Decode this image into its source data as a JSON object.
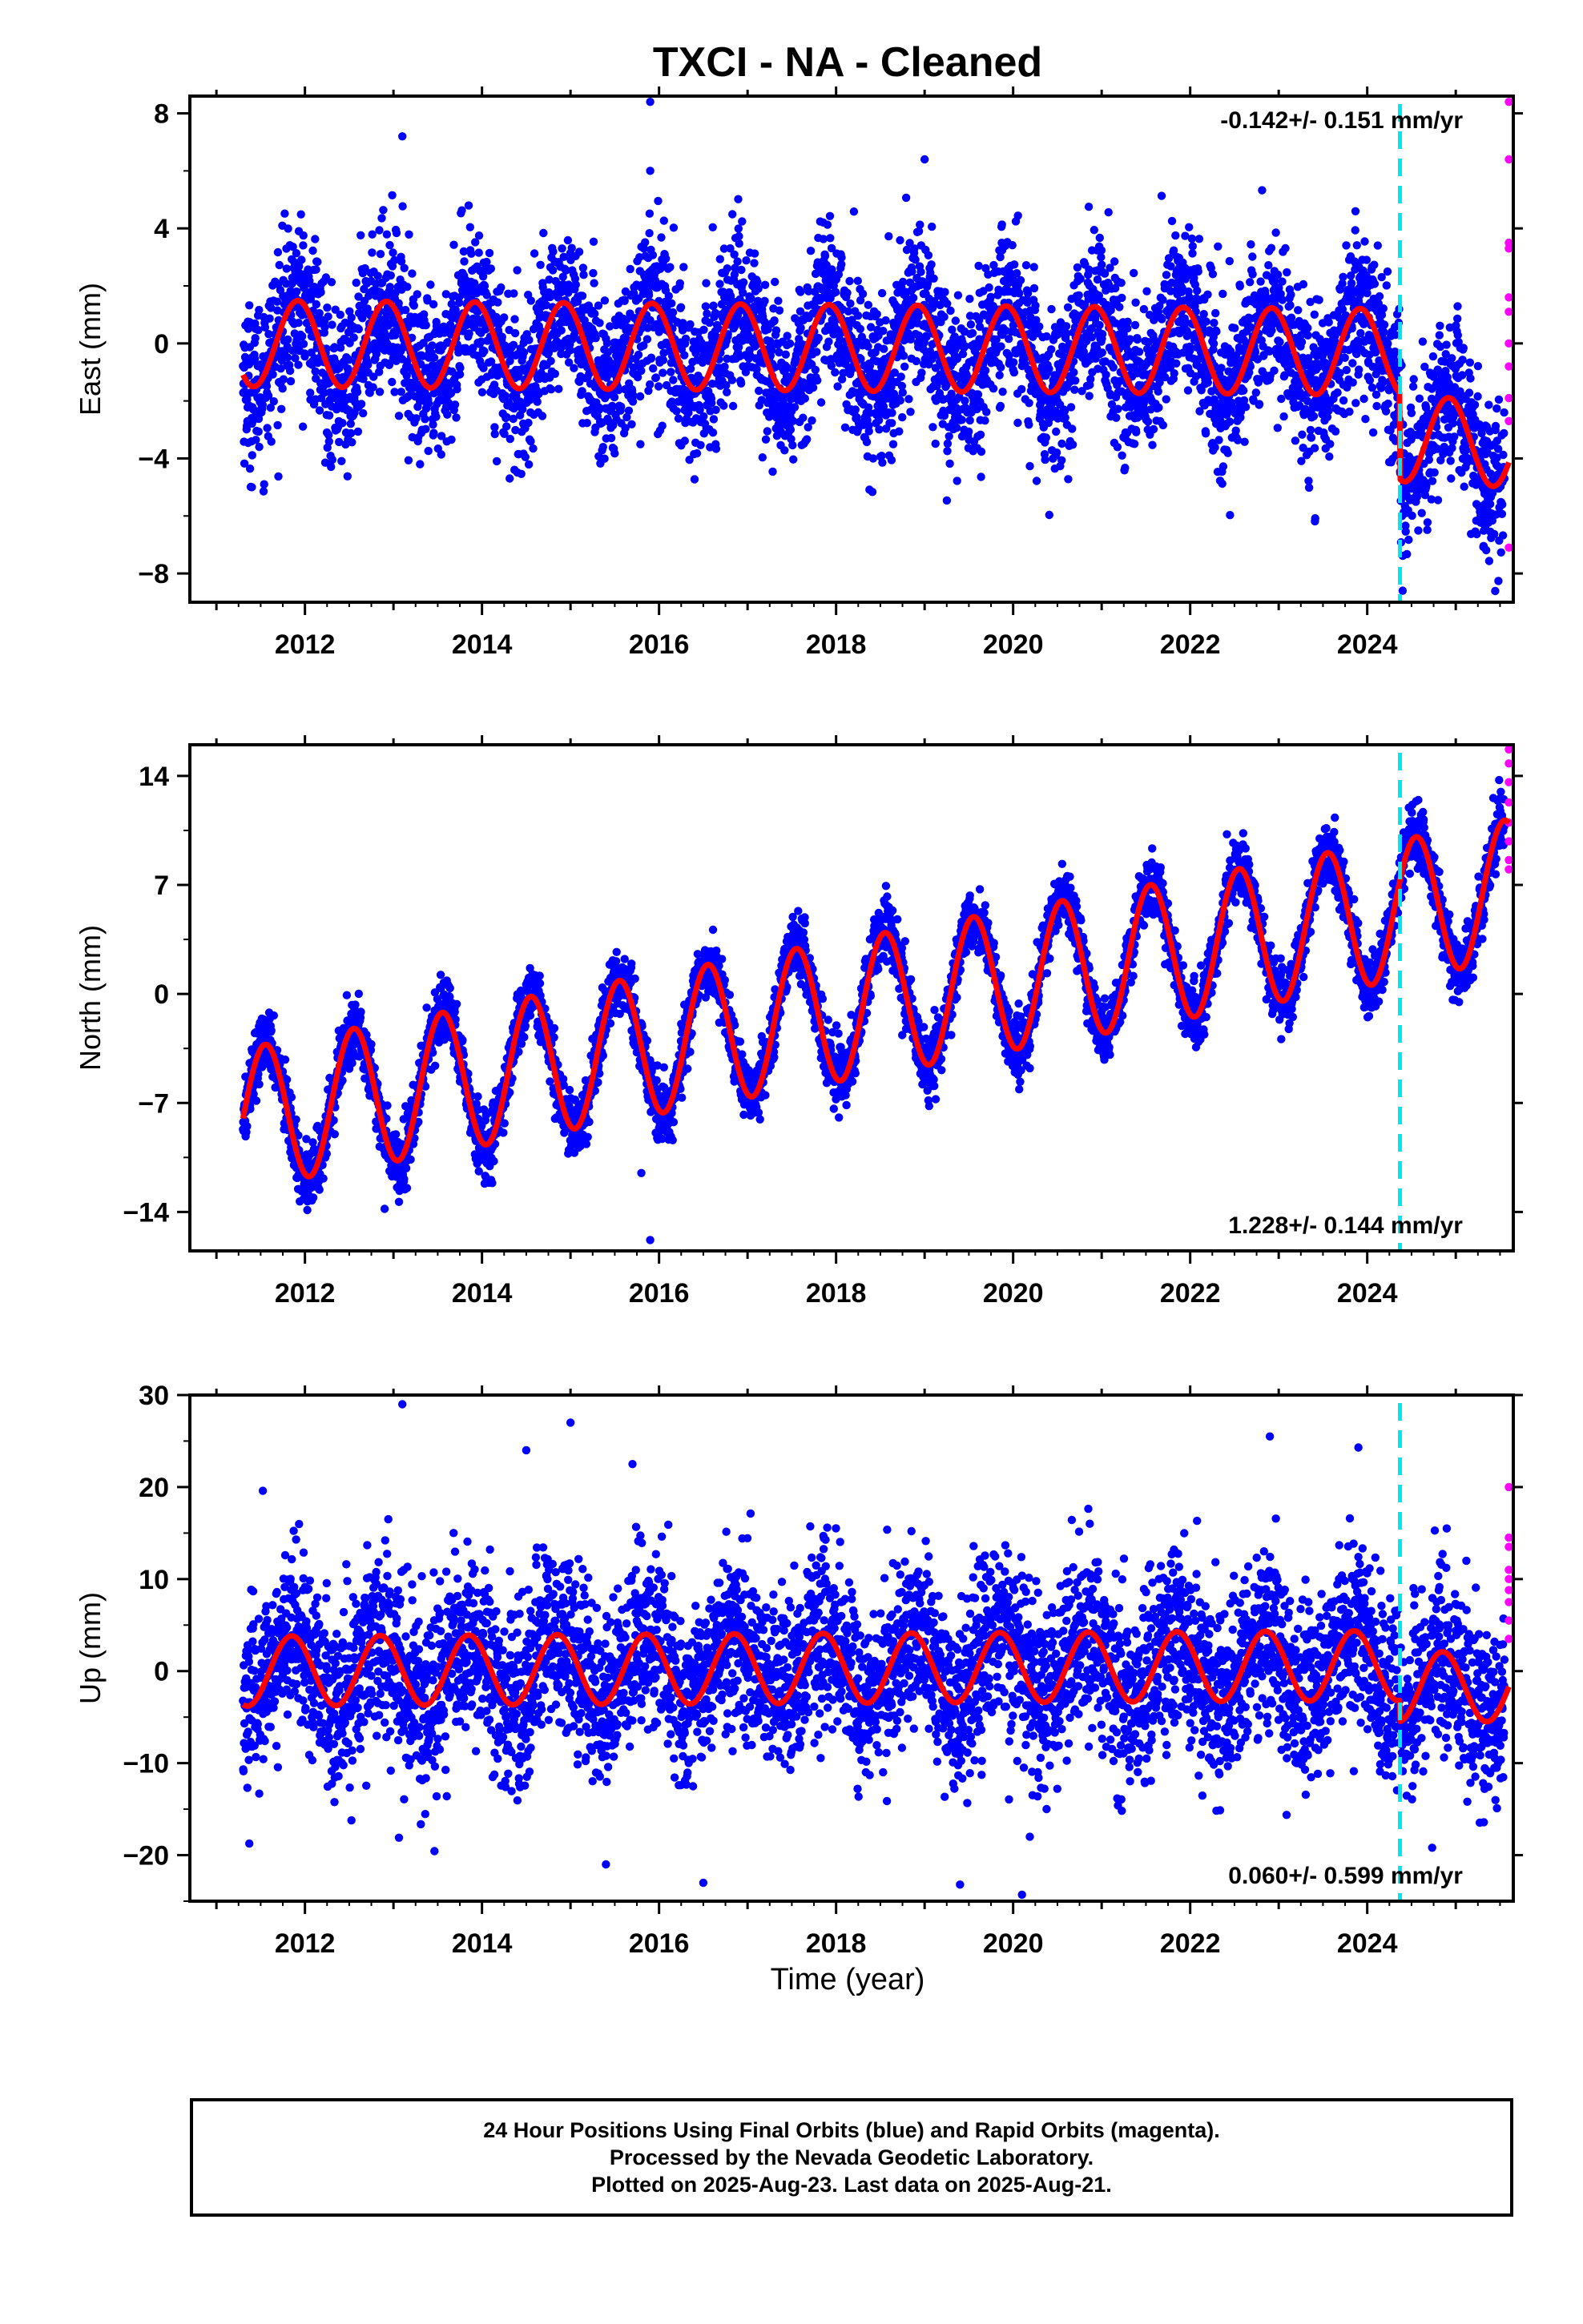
{
  "title": "TXCI  - NA - Cleaned",
  "xlabel": "Time (year)",
  "footer": {
    "line1": "24 Hour Positions Using Final Orbits (blue) and Rapid Orbits (magenta).",
    "line2": "Processed by the Nevada Geodetic Laboratory.",
    "line3": "Plotted on 2025-Aug-23. Last data on 2025-Aug-21."
  },
  "colors": {
    "final": "#0000ff",
    "rapid": "#ff00ff",
    "model": "#ff0000",
    "event": "#00e5ee"
  },
  "chart_data": [
    {
      "type": "scatter",
      "component": "east",
      "ylabel": "East (mm)",
      "xlim": [
        2010.7,
        2025.65
      ],
      "ylim": [
        -9,
        8.6
      ],
      "yticks": [
        -8,
        -4,
        0,
        4,
        8
      ],
      "xticks": [
        2012,
        2014,
        2016,
        2018,
        2020,
        2022,
        2024
      ],
      "rate_label": "-0.142+/- 0.151 mm/yr",
      "event_line_x": 2024.37,
      "data_start": 2011.3,
      "last_final": 2025.55,
      "model": {
        "trend": [
          [
            2011.3,
            0.0
          ],
          [
            2024.37,
            -0.3
          ],
          [
            2024.37,
            -3.3
          ],
          [
            2025.6,
            -3.5
          ]
        ],
        "amplitude": [
          [
            2011.3,
            1.5
          ],
          [
            2024.37,
            1.5
          ],
          [
            2024.37,
            1.5
          ],
          [
            2025.6,
            1.5
          ]
        ],
        "phase_peak": 0.92
      },
      "scatter_sd": 1.4,
      "outliers": [
        [
          2013.1,
          7.2
        ],
        [
          2015.9,
          8.4
        ],
        [
          2015.9,
          6.0
        ],
        [
          2019.0,
          6.4
        ],
        [
          2024.4,
          -8.6
        ],
        [
          2011.4,
          -5.0
        ],
        [
          2013.3,
          -4.2
        ]
      ],
      "rapid_points": [
        [
          2025.6,
          8.4
        ],
        [
          2025.6,
          6.4
        ],
        [
          2025.6,
          3.5
        ],
        [
          2025.6,
          3.3
        ],
        [
          2025.6,
          1.6
        ],
        [
          2025.6,
          1.1
        ],
        [
          2025.6,
          0.0
        ],
        [
          2025.6,
          -0.8
        ],
        [
          2025.6,
          -1.9
        ],
        [
          2025.6,
          -2.7
        ],
        [
          2025.6,
          -7.1
        ]
      ]
    },
    {
      "type": "scatter",
      "component": "north",
      "ylabel": "North (mm)",
      "xlim": [
        2010.7,
        2025.65
      ],
      "ylim": [
        -16.5,
        16
      ],
      "yticks": [
        -14,
        -7,
        0,
        7,
        14
      ],
      "xticks": [
        2012,
        2014,
        2016,
        2018,
        2020,
        2022,
        2024
      ],
      "rate_label": "1.228+/- 0.144 mm/yr",
      "event_line_x": 2024.37,
      "data_start": 2011.3,
      "last_final": 2025.55,
      "model": {
        "trend": [
          [
            2011.3,
            -8.0
          ],
          [
            2024.37,
            5.4
          ],
          [
            2024.37,
            5.4
          ],
          [
            2025.6,
            6.7
          ]
        ],
        "amplitude": [
          [
            2011.3,
            4.5
          ],
          [
            2024.37,
            4.5
          ],
          [
            2024.37,
            4.5
          ],
          [
            2025.6,
            4.5
          ]
        ],
        "phase_peak": 0.55
      },
      "scatter_sd": 1.0,
      "outliers": [
        [
          2015.9,
          -15.8
        ],
        [
          2012.9,
          -13.8
        ],
        [
          2015.8,
          -11.5
        ]
      ],
      "rapid_points": [
        [
          2025.6,
          15.7
        ],
        [
          2025.6,
          14.8
        ],
        [
          2025.6,
          13.6
        ],
        [
          2025.6,
          12.3
        ],
        [
          2025.6,
          11.0
        ],
        [
          2025.6,
          9.8
        ],
        [
          2025.6,
          8.6
        ],
        [
          2025.6,
          8.0
        ]
      ]
    },
    {
      "type": "scatter",
      "component": "up",
      "ylabel": "Up (mm)",
      "xlim": [
        2010.7,
        2025.65
      ],
      "ylim": [
        -25,
        30
      ],
      "yticks": [
        -20,
        -10,
        0,
        10,
        20,
        30
      ],
      "xticks": [
        2012,
        2014,
        2016,
        2018,
        2020,
        2022,
        2024
      ],
      "rate_label": "0.060+/- 0.599 mm/yr",
      "event_line_x": 2024.37,
      "data_start": 2011.3,
      "last_final": 2025.55,
      "model": {
        "trend": [
          [
            2011.3,
            0.0
          ],
          [
            2024.37,
            0.6
          ],
          [
            2024.37,
            -1.7
          ],
          [
            2025.6,
            -1.7
          ]
        ],
        "amplitude": [
          [
            2011.3,
            3.8
          ],
          [
            2024.37,
            3.8
          ],
          [
            2024.37,
            3.8
          ],
          [
            2025.6,
            3.8
          ]
        ],
        "phase_peak": 0.85
      },
      "scatter_sd": 4.8,
      "outliers": [
        [
          2013.1,
          29.0
        ],
        [
          2015.0,
          27.0
        ],
        [
          2014.5,
          24.0
        ],
        [
          2015.7,
          22.5
        ],
        [
          2022.9,
          25.5
        ],
        [
          2023.9,
          24.3
        ],
        [
          2019.4,
          -23.2
        ],
        [
          2016.5,
          -23.0
        ],
        [
          2020.1,
          -24.3
        ],
        [
          2015.4,
          -21.0
        ]
      ],
      "rapid_points": [
        [
          2025.6,
          20.0
        ],
        [
          2025.6,
          14.5
        ],
        [
          2025.6,
          13.5
        ],
        [
          2025.6,
          11.0
        ],
        [
          2025.6,
          10.0
        ],
        [
          2025.6,
          8.8
        ],
        [
          2025.6,
          7.5
        ],
        [
          2025.6,
          5.5
        ],
        [
          2025.6,
          3.5
        ]
      ]
    }
  ]
}
